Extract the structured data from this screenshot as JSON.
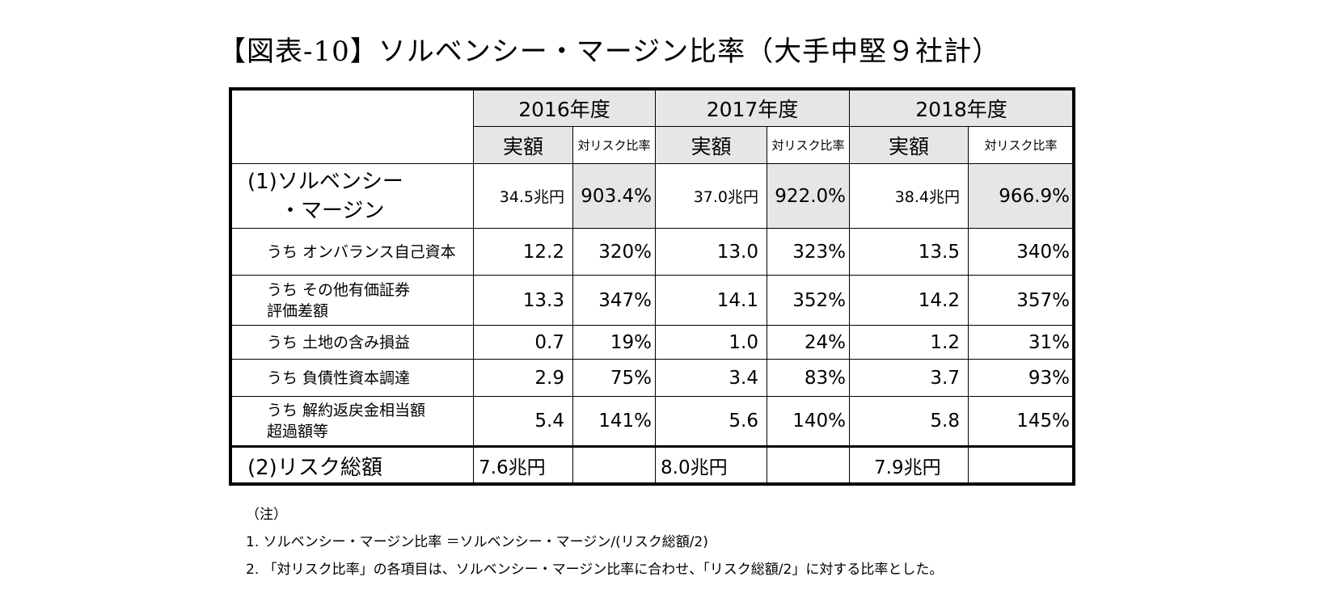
{
  "title": "【図表-10】ソルベンシー・マージン比率（大手中堅９社計）",
  "header": {
    "years": [
      "2016年度",
      "2017年度",
      "2018年度"
    ],
    "col_amount": "実額",
    "col_ratio": "対リスク比率"
  },
  "solvency": {
    "label_line1": "(1)ソルベンシー",
    "label_line2": "・マージン",
    "values": [
      {
        "amount": "34.5兆円",
        "ratio": "903.4%"
      },
      {
        "amount": "37.0兆円",
        "ratio": "922.0%"
      },
      {
        "amount": "38.4兆円",
        "ratio": "966.9%"
      }
    ]
  },
  "rows": [
    {
      "label1": "うち オンバランス自己資本",
      "label2": "",
      "values": [
        {
          "amount": "12.2",
          "ratio": "320%"
        },
        {
          "amount": "13.0",
          "ratio": "323%"
        },
        {
          "amount": "13.5",
          "ratio": "340%"
        }
      ]
    },
    {
      "label1": "うち その他有価証券",
      "label2": "評価差額",
      "values": [
        {
          "amount": "13.3",
          "ratio": "347%"
        },
        {
          "amount": "14.1",
          "ratio": "352%"
        },
        {
          "amount": "14.2",
          "ratio": "357%"
        }
      ]
    },
    {
      "label1": "うち 土地の含み損益",
      "label2": "",
      "values": [
        {
          "amount": "0.7",
          "ratio": "19%"
        },
        {
          "amount": "1.0",
          "ratio": "24%"
        },
        {
          "amount": "1.2",
          "ratio": "31%"
        }
      ]
    },
    {
      "label1": "うち 負債性資本調達",
      "label2": "",
      "values": [
        {
          "amount": "2.9",
          "ratio": "75%"
        },
        {
          "amount": "3.4",
          "ratio": "83%"
        },
        {
          "amount": "3.7",
          "ratio": "93%"
        }
      ]
    },
    {
      "label1": "うち 解約返戻金相当額",
      "label2": "超過額等",
      "values": [
        {
          "amount": "5.4",
          "ratio": "141%"
        },
        {
          "amount": "5.6",
          "ratio": "140%"
        },
        {
          "amount": "5.8",
          "ratio": "145%"
        }
      ]
    }
  ],
  "risk": {
    "label": "(2)リスク総額",
    "values": [
      "7.6兆円",
      "8.0兆円",
      "7.9兆円"
    ]
  },
  "notes": {
    "heading": "（注）",
    "n1": "1.  ソルベンシー・マージン比率 ＝ソルベンシー・マージン/(リスク総額/2)",
    "n2": "2. 「対リスク比率」の各項目は、ソルベンシー・マージン比率に合わせ、「リスク総額/2」に対する比率とした。"
  }
}
